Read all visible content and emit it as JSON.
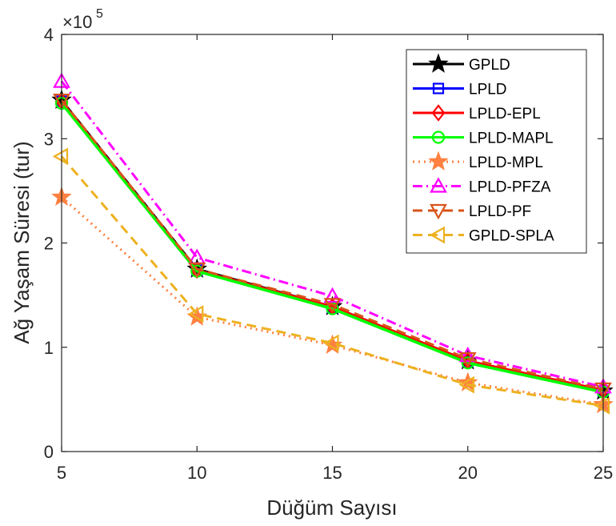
{
  "chart_data": {
    "type": "line",
    "xlabel": "Düğüm Sayısı",
    "ylabel": "Ağ Yaşam Süresi (tur)",
    "y_multiplier_base": "×10",
    "y_multiplier_exp": "5",
    "x": [
      5,
      10,
      15,
      20,
      25
    ],
    "x_ticks": [
      "5",
      "10",
      "15",
      "20",
      "25"
    ],
    "y_ticks": [
      "0",
      "1",
      "2",
      "3",
      "4"
    ],
    "xlim": [
      5,
      25
    ],
    "ylim": [
      0,
      400000
    ],
    "grid": false,
    "legend_position": "top-right",
    "series": [
      {
        "name": "GPLD",
        "values": [
          337000,
          175000,
          139000,
          87000,
          58000
        ],
        "color": "#000000",
        "marker": "star",
        "dash": "solid"
      },
      {
        "name": "LPLD",
        "values": [
          336000,
          174000,
          138000,
          86000,
          58000
        ],
        "color": "#0000ff",
        "marker": "square",
        "dash": "solid"
      },
      {
        "name": "LPLD-EPL",
        "values": [
          336000,
          174000,
          139000,
          87000,
          59000
        ],
        "color": "#ff0000",
        "marker": "diamond",
        "dash": "solid"
      },
      {
        "name": "LPLD-MAPL",
        "values": [
          334000,
          173000,
          137000,
          85000,
          57000
        ],
        "color": "#00ff00",
        "marker": "circle",
        "dash": "solid"
      },
      {
        "name": "LPLD-MPL",
        "values": [
          244000,
          129000,
          102000,
          66000,
          45000
        ],
        "color": "#ff8040",
        "marker": "star",
        "dash": "dotted"
      },
      {
        "name": "LPLD-PFZA",
        "values": [
          355000,
          186000,
          149000,
          92000,
          62000
        ],
        "color": "#ff00ff",
        "marker": "triangle-up",
        "dash": "dashdot"
      },
      {
        "name": "LPLD-PF",
        "values": [
          337000,
          175000,
          141000,
          89000,
          60000
        ],
        "color": "#d95319",
        "marker": "triangle-down",
        "dash": "dashed"
      },
      {
        "name": "GPLD-SPLA",
        "values": [
          283000,
          132000,
          104000,
          64000,
          44000
        ],
        "color": "#edb120",
        "marker": "triangle-left",
        "dash": "dashed"
      }
    ]
  }
}
